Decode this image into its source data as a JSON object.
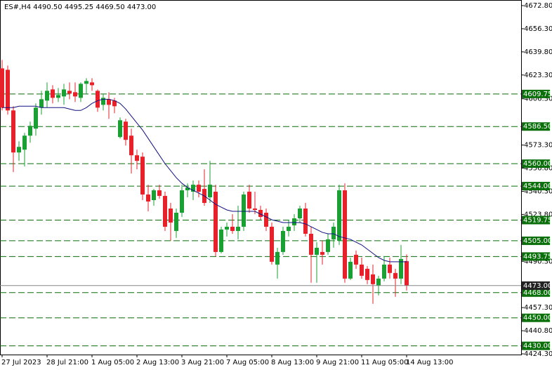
{
  "chart_data": {
    "type": "candlestick",
    "title": "ES#,H4  4490.50 4495.25 4469.50 4473.00",
    "categories": [
      "27 Jul 2023",
      null,
      null,
      null,
      null,
      null,
      null,
      null,
      "28 Jul 21:00",
      null,
      null,
      null,
      null,
      null,
      null,
      null,
      "1 Aug 05:00",
      null,
      null,
      null,
      null,
      null,
      null,
      null,
      "2 Aug 13:00",
      null,
      null,
      null,
      null,
      null,
      null,
      null,
      "3 Aug 21:00",
      null,
      null,
      null,
      null,
      null,
      null,
      null,
      "7 Aug 05:00",
      null,
      null,
      null,
      null,
      null,
      null,
      null,
      "8 Aug 13:00",
      null,
      null,
      null,
      null,
      null,
      null,
      null,
      "9 Aug 21:00",
      null,
      null,
      null,
      null,
      null,
      null,
      null,
      "11 Aug 05:00",
      null,
      null,
      null,
      null,
      null,
      null,
      null,
      "14 Aug 13:00"
    ],
    "open": [
      4628,
      4627,
      4598,
      4568,
      4570,
      4580,
      4585,
      4600,
      4605,
      4613,
      4607,
      4608,
      4612,
      4611,
      4607,
      4617,
      4618,
      4612,
      4602,
      4606,
      4605,
      4579,
      4590,
      4580,
      4566,
      4565,
      4538,
      4534,
      4541,
      4537,
      4528,
      4512,
      4525,
      4541,
      4540,
      4545,
      4542,
      4536,
      4540,
      4497,
      4513,
      4515,
      4512,
      4515,
      4540,
      4528,
      4527,
      4525,
      4515,
      4488,
      4497,
      4512,
      4516,
      4521,
      4528,
      4510,
      4495,
      4497,
      4497,
      4506,
      4505,
      4541,
      4478,
      4495,
      4488,
      4485,
      4481,
      4473,
      4478,
      4488,
      4482,
      4478,
      4490.5
    ],
    "high": [
      4634,
      4630,
      4601,
      4576,
      4582,
      4590,
      4603,
      4612,
      4618,
      4616,
      4614,
      4617,
      4618,
      4618,
      4618,
      4621,
      4621,
      4613,
      4610,
      4611,
      4607,
      4593,
      4592,
      4585,
      4570,
      4568,
      4545,
      4542,
      4545,
      4540,
      4532,
      4528,
      4545,
      4546,
      4548,
      4548,
      4556,
      4562,
      4545,
      4515,
      4518,
      4524,
      4530,
      4540,
      4545,
      4540,
      4530,
      4528,
      4518,
      4500,
      4515,
      4520,
      4524,
      4530,
      4532,
      4515,
      4504,
      4505,
      4510,
      4518,
      4545,
      4546,
      4493,
      4498,
      4493,
      4487,
      4488,
      4480,
      4494,
      4493,
      4485,
      4502,
      4495.25
    ],
    "low": [
      4598,
      4595,
      4554,
      4562,
      4558,
      4575,
      4580,
      4595,
      4600,
      4603,
      4604,
      4602,
      4606,
      4604,
      4604,
      4610,
      4612,
      4597,
      4598,
      4592,
      4596,
      4578,
      4573,
      4553,
      4556,
      4534,
      4526,
      4530,
      4535,
      4512,
      4505,
      4507,
      4522,
      4536,
      4534,
      4536,
      4530,
      4532,
      4494,
      4496,
      4508,
      4510,
      4506,
      4512,
      4525,
      4524,
      4520,
      4512,
      4488,
      4478,
      4495,
      4508,
      4512,
      4518,
      4508,
      4475,
      4475,
      4488,
      4495,
      4500,
      4502,
      4475,
      4477,
      4485,
      4478,
      4474,
      4460,
      4466,
      4476,
      4478,
      4465,
      4474,
      4469.5
    ],
    "close": [
      4600,
      4598,
      4568,
      4572,
      4580,
      4587,
      4600,
      4606,
      4612,
      4607,
      4609,
      4613,
      4610,
      4608,
      4617,
      4619,
      4616,
      4600,
      4607,
      4602,
      4601,
      4591,
      4577,
      4566,
      4562,
      4538,
      4533,
      4541,
      4537,
      4515,
      4518,
      4525,
      4541,
      4543,
      4545,
      4540,
      4532,
      4545,
      4497,
      4513,
      4515,
      4512,
      4515,
      4538,
      4528,
      4527,
      4522,
      4515,
      4490,
      4497,
      4512,
      4515,
      4521,
      4528,
      4510,
      4495,
      4500,
      4495,
      4506,
      4515,
      4541,
      4478,
      4490,
      4488,
      4480,
      4477,
      4474,
      4478,
      4488,
      4482,
      4478,
      4492,
      4473
    ],
    "ma": [
      4600,
      4600,
      4600,
      4601,
      4601,
      4601,
      4601,
      4600,
      4600,
      4600,
      4600,
      4600,
      4599,
      4598,
      4598,
      4600,
      4603,
      4605,
      4606,
      4606,
      4605,
      4603,
      4599,
      4594,
      4589,
      4584,
      4578,
      4572,
      4566,
      4560,
      4555,
      4550,
      4546,
      4543,
      4541,
      4539,
      4537,
      4534,
      4531,
      4529,
      4527,
      4526,
      4526,
      4526,
      4526,
      4526,
      4524,
      4522,
      4520,
      4519,
      4518,
      4518,
      4518,
      4518,
      4517,
      4515,
      4513,
      4511,
      4510,
      4510,
      4508,
      4507,
      4506,
      4504,
      4502,
      4499,
      4496,
      4493,
      4491,
      4490,
      4490,
      4490,
      4490
    ],
    "up_color": "#1aa032",
    "down_color": "#e8202a",
    "ma_color": "#101080",
    "ylim": [
      4423.8,
      4676.8
    ],
    "yticks": [
      {
        "value": 4672.8,
        "label": "4672.80"
      },
      {
        "value": 4656.3,
        "label": "4656.30"
      },
      {
        "value": 4639.8,
        "label": "4639.80"
      },
      {
        "value": 4623.3,
        "label": "4623.30"
      },
      {
        "value": 4606.3,
        "label": "4606.30"
      },
      {
        "value": 4573.3,
        "label": "4573.30"
      },
      {
        "value": 4556.8,
        "label": "4556.80"
      },
      {
        "value": 4540.3,
        "label": "4540.30"
      },
      {
        "value": 4523.8,
        "label": "4523.80"
      },
      {
        "value": 4490.3,
        "label": "4490.30"
      },
      {
        "value": 4457.3,
        "label": "4457.30"
      },
      {
        "value": 4440.8,
        "label": "4440.80"
      },
      {
        "value": 4424.3,
        "label": "4424.30"
      }
    ],
    "levels": [
      {
        "value": 4609.75,
        "label": "4609.75"
      },
      {
        "value": 4586.5,
        "label": "4586.50"
      },
      {
        "value": 4560,
        "label": "4560.00"
      },
      {
        "value": 4544,
        "label": "4544.00"
      },
      {
        "value": 4519.75,
        "label": "4519.75"
      },
      {
        "value": 4505,
        "label": "4505.00"
      },
      {
        "value": 4493.75,
        "label": "4493.75"
      },
      {
        "value": 4468,
        "label": "4468.00"
      },
      {
        "value": 4450,
        "label": "4450.00"
      },
      {
        "value": 4430,
        "label": "4430.00"
      }
    ],
    "level_color": "#0a6e0a",
    "current_price": {
      "value": 4473,
      "label": "4473.00"
    }
  }
}
